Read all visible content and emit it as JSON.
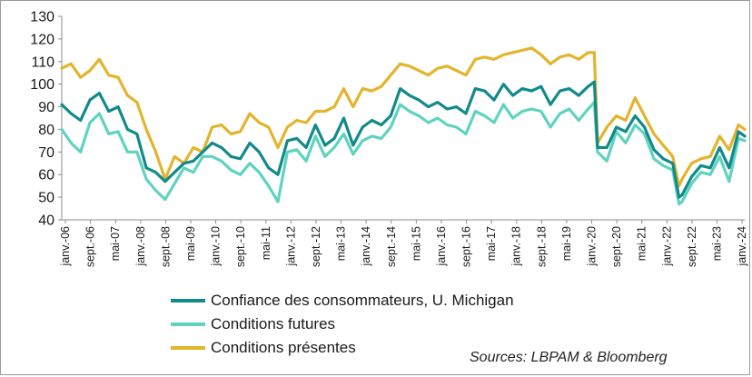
{
  "chart_data": {
    "type": "line",
    "title": "",
    "xlabel": "",
    "ylabel": "",
    "ylim": [
      40,
      130
    ],
    "y_ticks": [
      40,
      50,
      60,
      70,
      80,
      90,
      100,
      110,
      120,
      130
    ],
    "x_start": "2006-01",
    "x_end": "2024-03",
    "x_tick_labels": [
      "janv.-06",
      "sept.-06",
      "mai-07",
      "janv.-08",
      "sept.-08",
      "mai-09",
      "janv.-10",
      "sept.-10",
      "mai-11",
      "janv.-12",
      "sept.-12",
      "mai-13",
      "janv.-14",
      "sept.-14",
      "mai-15",
      "janv.-16",
      "sept.-16",
      "mai-17",
      "janv.-18",
      "sept.-18",
      "mai-19",
      "janv.-20",
      "sept.-20",
      "mai-21",
      "janv.-22",
      "sept.-22",
      "mai-23",
      "janv.-24"
    ],
    "grid": false,
    "legend_position": "bottom",
    "series": [
      {
        "name": "Confiance des consommateurs, U. Michigan",
        "color": "#128a8a",
        "points": [
          [
            "2006-01",
            91
          ],
          [
            "2006-04",
            87
          ],
          [
            "2006-07",
            84
          ],
          [
            "2006-10",
            93
          ],
          [
            "2007-01",
            96
          ],
          [
            "2007-04",
            88
          ],
          [
            "2007-07",
            90
          ],
          [
            "2007-10",
            80
          ],
          [
            "2008-01",
            78
          ],
          [
            "2008-04",
            63
          ],
          [
            "2008-07",
            61
          ],
          [
            "2008-10",
            57
          ],
          [
            "2009-01",
            61
          ],
          [
            "2009-04",
            65
          ],
          [
            "2009-07",
            66
          ],
          [
            "2009-10",
            70
          ],
          [
            "2010-01",
            74
          ],
          [
            "2010-04",
            72
          ],
          [
            "2010-07",
            68
          ],
          [
            "2010-10",
            67
          ],
          [
            "2011-01",
            74
          ],
          [
            "2011-04",
            70
          ],
          [
            "2011-07",
            63
          ],
          [
            "2011-10",
            60
          ],
          [
            "2012-01",
            75
          ],
          [
            "2012-04",
            76
          ],
          [
            "2012-07",
            72
          ],
          [
            "2012-10",
            82
          ],
          [
            "2013-01",
            73
          ],
          [
            "2013-04",
            76
          ],
          [
            "2013-07",
            85
          ],
          [
            "2013-10",
            73
          ],
          [
            "2014-01",
            81
          ],
          [
            "2014-04",
            84
          ],
          [
            "2014-07",
            82
          ],
          [
            "2014-10",
            86
          ],
          [
            "2015-01",
            98
          ],
          [
            "2015-04",
            95
          ],
          [
            "2015-07",
            93
          ],
          [
            "2015-10",
            90
          ],
          [
            "2016-01",
            92
          ],
          [
            "2016-04",
            89
          ],
          [
            "2016-07",
            90
          ],
          [
            "2016-10",
            87
          ],
          [
            "2017-01",
            98
          ],
          [
            "2017-04",
            97
          ],
          [
            "2017-07",
            93
          ],
          [
            "2017-10",
            100
          ],
          [
            "2018-01",
            95
          ],
          [
            "2018-04",
            98
          ],
          [
            "2018-07",
            97
          ],
          [
            "2018-10",
            99
          ],
          [
            "2019-01",
            91
          ],
          [
            "2019-04",
            97
          ],
          [
            "2019-07",
            98
          ],
          [
            "2019-10",
            95
          ],
          [
            "2020-01",
            99
          ],
          [
            "2020-03",
            101
          ],
          [
            "2020-04",
            72
          ],
          [
            "2020-07",
            72
          ],
          [
            "2020-10",
            81
          ],
          [
            "2021-01",
            79
          ],
          [
            "2021-04",
            86
          ],
          [
            "2021-07",
            81
          ],
          [
            "2021-10",
            71
          ],
          [
            "2022-01",
            67
          ],
          [
            "2022-04",
            65
          ],
          [
            "2022-06",
            50
          ],
          [
            "2022-07",
            51
          ],
          [
            "2022-10",
            59
          ],
          [
            "2023-01",
            64
          ],
          [
            "2023-04",
            63
          ],
          [
            "2023-07",
            72
          ],
          [
            "2023-10",
            63
          ],
          [
            "2024-01",
            79
          ],
          [
            "2024-03",
            77
          ]
        ]
      },
      {
        "name": "Conditions futures",
        "color": "#5fd3c0",
        "points": [
          [
            "2006-01",
            80
          ],
          [
            "2006-04",
            74
          ],
          [
            "2006-07",
            70
          ],
          [
            "2006-10",
            83
          ],
          [
            "2007-01",
            87
          ],
          [
            "2007-04",
            78
          ],
          [
            "2007-07",
            79
          ],
          [
            "2007-10",
            70
          ],
          [
            "2008-01",
            70
          ],
          [
            "2008-04",
            58
          ],
          [
            "2008-07",
            53
          ],
          [
            "2008-10",
            49
          ],
          [
            "2009-01",
            56
          ],
          [
            "2009-04",
            63
          ],
          [
            "2009-07",
            61
          ],
          [
            "2009-10",
            68
          ],
          [
            "2010-01",
            68
          ],
          [
            "2010-04",
            66
          ],
          [
            "2010-07",
            62
          ],
          [
            "2010-10",
            60
          ],
          [
            "2011-01",
            65
          ],
          [
            "2011-04",
            61
          ],
          [
            "2011-07",
            55
          ],
          [
            "2011-10",
            48
          ],
          [
            "2012-01",
            70
          ],
          [
            "2012-04",
            71
          ],
          [
            "2012-07",
            66
          ],
          [
            "2012-10",
            77
          ],
          [
            "2013-01",
            68
          ],
          [
            "2013-04",
            72
          ],
          [
            "2013-07",
            78
          ],
          [
            "2013-10",
            69
          ],
          [
            "2014-01",
            75
          ],
          [
            "2014-04",
            77
          ],
          [
            "2014-07",
            76
          ],
          [
            "2014-10",
            81
          ],
          [
            "2015-01",
            91
          ],
          [
            "2015-04",
            88
          ],
          [
            "2015-07",
            86
          ],
          [
            "2015-10",
            83
          ],
          [
            "2016-01",
            85
          ],
          [
            "2016-04",
            82
          ],
          [
            "2016-07",
            81
          ],
          [
            "2016-10",
            78
          ],
          [
            "2017-01",
            88
          ],
          [
            "2017-04",
            86
          ],
          [
            "2017-07",
            83
          ],
          [
            "2017-10",
            91
          ],
          [
            "2018-01",
            85
          ],
          [
            "2018-04",
            88
          ],
          [
            "2018-07",
            89
          ],
          [
            "2018-10",
            88
          ],
          [
            "2019-01",
            81
          ],
          [
            "2019-04",
            87
          ],
          [
            "2019-07",
            89
          ],
          [
            "2019-10",
            84
          ],
          [
            "2020-01",
            89
          ],
          [
            "2020-03",
            92
          ],
          [
            "2020-04",
            70
          ],
          [
            "2020-07",
            66
          ],
          [
            "2020-10",
            79
          ],
          [
            "2021-01",
            74
          ],
          [
            "2021-04",
            82
          ],
          [
            "2021-07",
            78
          ],
          [
            "2021-10",
            67
          ],
          [
            "2022-01",
            64
          ],
          [
            "2022-04",
            62
          ],
          [
            "2022-06",
            47
          ],
          [
            "2022-07",
            48
          ],
          [
            "2022-10",
            56
          ],
          [
            "2023-01",
            61
          ],
          [
            "2023-04",
            60
          ],
          [
            "2023-07",
            68
          ],
          [
            "2023-10",
            57
          ],
          [
            "2024-01",
            76
          ],
          [
            "2024-03",
            75
          ]
        ]
      },
      {
        "name": "Conditions présentes",
        "color": "#e3b42c",
        "points": [
          [
            "2006-01",
            107
          ],
          [
            "2006-04",
            109
          ],
          [
            "2006-07",
            103
          ],
          [
            "2006-10",
            106
          ],
          [
            "2007-01",
            111
          ],
          [
            "2007-04",
            104
          ],
          [
            "2007-07",
            103
          ],
          [
            "2007-10",
            95
          ],
          [
            "2008-01",
            92
          ],
          [
            "2008-04",
            80
          ],
          [
            "2008-07",
            70
          ],
          [
            "2008-10",
            58
          ],
          [
            "2009-01",
            68
          ],
          [
            "2009-04",
            65
          ],
          [
            "2009-07",
            72
          ],
          [
            "2009-10",
            70
          ],
          [
            "2010-01",
            81
          ],
          [
            "2010-04",
            82
          ],
          [
            "2010-07",
            78
          ],
          [
            "2010-10",
            79
          ],
          [
            "2011-01",
            87
          ],
          [
            "2011-04",
            83
          ],
          [
            "2011-07",
            81
          ],
          [
            "2011-10",
            72
          ],
          [
            "2012-01",
            81
          ],
          [
            "2012-04",
            84
          ],
          [
            "2012-07",
            83
          ],
          [
            "2012-10",
            88
          ],
          [
            "2013-01",
            88
          ],
          [
            "2013-04",
            90
          ],
          [
            "2013-07",
            98
          ],
          [
            "2013-10",
            90
          ],
          [
            "2014-01",
            98
          ],
          [
            "2014-04",
            97
          ],
          [
            "2014-07",
            99
          ],
          [
            "2014-10",
            104
          ],
          [
            "2015-01",
            109
          ],
          [
            "2015-04",
            108
          ],
          [
            "2015-07",
            106
          ],
          [
            "2015-10",
            104
          ],
          [
            "2016-01",
            107
          ],
          [
            "2016-04",
            108
          ],
          [
            "2016-07",
            106
          ],
          [
            "2016-10",
            104
          ],
          [
            "2017-01",
            111
          ],
          [
            "2017-04",
            112
          ],
          [
            "2017-07",
            111
          ],
          [
            "2017-10",
            113
          ],
          [
            "2018-01",
            114
          ],
          [
            "2018-04",
            115
          ],
          [
            "2018-07",
            116
          ],
          [
            "2018-10",
            113
          ],
          [
            "2019-01",
            109
          ],
          [
            "2019-04",
            112
          ],
          [
            "2019-07",
            113
          ],
          [
            "2019-10",
            111
          ],
          [
            "2020-01",
            114
          ],
          [
            "2020-03",
            114
          ],
          [
            "2020-04",
            74
          ],
          [
            "2020-07",
            81
          ],
          [
            "2020-10",
            86
          ],
          [
            "2021-01",
            84
          ],
          [
            "2021-04",
            94
          ],
          [
            "2021-07",
            86
          ],
          [
            "2021-10",
            78
          ],
          [
            "2022-01",
            73
          ],
          [
            "2022-04",
            68
          ],
          [
            "2022-06",
            55
          ],
          [
            "2022-07",
            58
          ],
          [
            "2022-10",
            65
          ],
          [
            "2023-01",
            67
          ],
          [
            "2023-04",
            68
          ],
          [
            "2023-07",
            77
          ],
          [
            "2023-10",
            71
          ],
          [
            "2024-01",
            82
          ],
          [
            "2024-03",
            80
          ]
        ]
      }
    ]
  },
  "legend_items": [
    {
      "label": "Confiance des consommateurs, U. Michigan",
      "color": "#128a8a"
    },
    {
      "label": "Conditions futures",
      "color": "#5fd3c0"
    },
    {
      "label": "Conditions présentes",
      "color": "#e3b42c"
    }
  ],
  "source_text": "Sources: LBPAM & Bloomberg"
}
